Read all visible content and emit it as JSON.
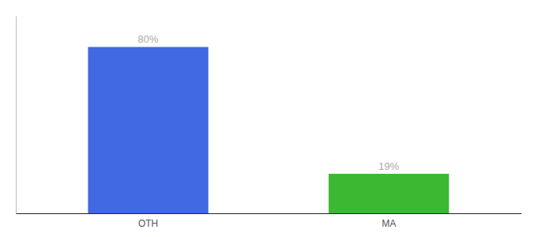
{
  "chart_data": {
    "type": "bar",
    "categories": [
      "OTH",
      "MA"
    ],
    "values": [
      80,
      19
    ],
    "value_labels": [
      "80%",
      "19%"
    ],
    "data_labels": true,
    "colors": [
      "#4169E1",
      "#3CB832"
    ],
    "ylim": [
      0,
      95
    ],
    "tick_labels": "x",
    "grid": false
  }
}
